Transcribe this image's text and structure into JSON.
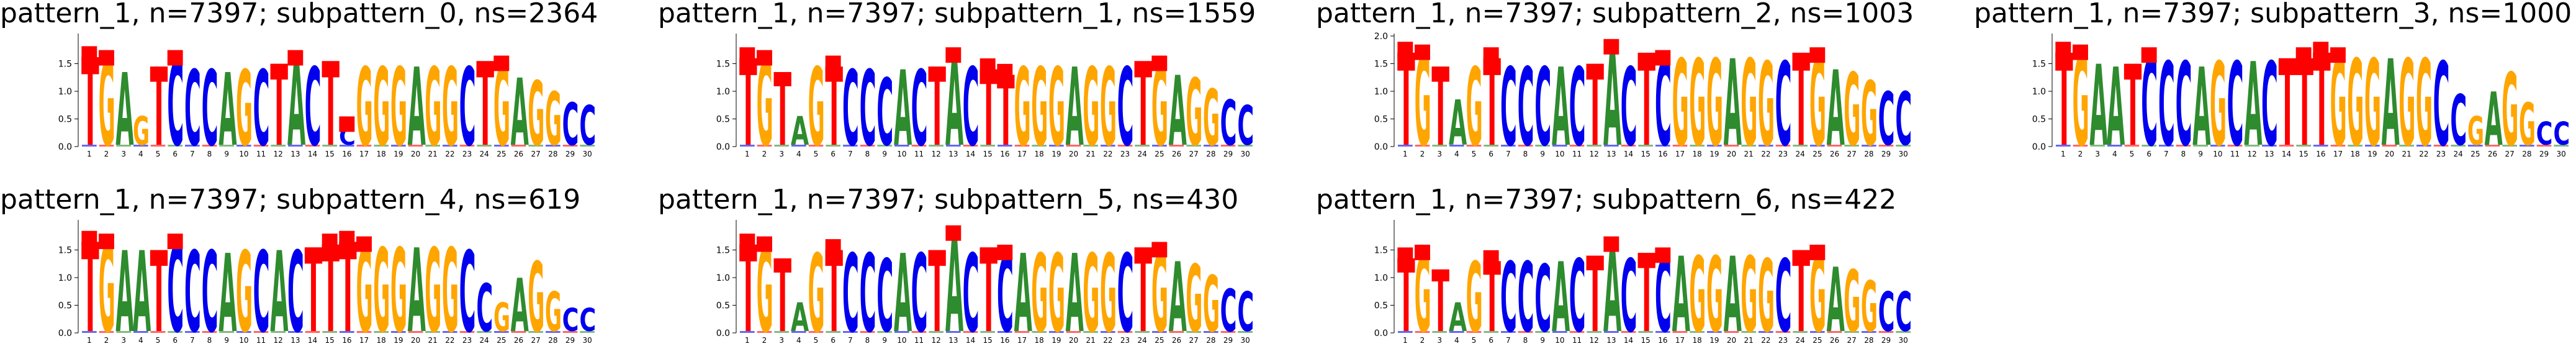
{
  "colors": {
    "A": "#2e8b2e",
    "C": "#0000ee",
    "G": "#ffa500",
    "T": "#ff0000",
    "marker": "#ff0000"
  },
  "chart_data": [
    {
      "type": "sequence-logo",
      "title": "pattern_1, n=7397; subpattern_0, ns=2364",
      "ylim": [
        0,
        2.0
      ],
      "yticks": [
        "0.0",
        "0.5",
        "1.0",
        "1.5"
      ],
      "positions": [
        1,
        2,
        3,
        4,
        5,
        6,
        7,
        8,
        9,
        10,
        11,
        12,
        13,
        14,
        15,
        16,
        17,
        18,
        19,
        20,
        21,
        22,
        23,
        24,
        25,
        26,
        27,
        28,
        29,
        30
      ],
      "consensus": [
        "T",
        "G",
        "A",
        "G",
        "T",
        "C",
        "C",
        "C",
        "A",
        "G",
        "C",
        "T",
        "A",
        "C",
        "T",
        "C",
        "G",
        "G",
        "G",
        "A",
        "G",
        "G",
        "C",
        "T",
        "G",
        "A",
        "G",
        "G",
        "C",
        "C"
      ],
      "heights": [
        1.62,
        1.55,
        1.35,
        0.55,
        1.45,
        1.55,
        1.4,
        1.4,
        1.35,
        1.4,
        1.4,
        1.5,
        1.55,
        1.45,
        1.55,
        0.35,
        1.45,
        1.45,
        1.45,
        1.45,
        1.45,
        1.45,
        1.45,
        1.55,
        1.45,
        1.25,
        1.2,
        1.0,
        0.8,
        0.75
      ],
      "markers": [
        1,
        2,
        6,
        13,
        16,
        25
      ]
    },
    {
      "type": "sequence-logo",
      "title": "pattern_1, n=7397; subpattern_1, ns=1559",
      "ylim": [
        0,
        2.0
      ],
      "yticks": [
        "0.0",
        "0.5",
        "1.0",
        "1.5"
      ],
      "positions": [
        1,
        2,
        3,
        4,
        5,
        6,
        7,
        8,
        9,
        10,
        11,
        12,
        13,
        14,
        15,
        16,
        17,
        18,
        19,
        20,
        21,
        22,
        23,
        24,
        25,
        26,
        27,
        28,
        29,
        30
      ],
      "consensus": [
        "T",
        "G",
        "T",
        "A",
        "G",
        "T",
        "C",
        "C",
        "C",
        "A",
        "C",
        "T",
        "A",
        "C",
        "T",
        "T",
        "G",
        "G",
        "G",
        "A",
        "G",
        "G",
        "C",
        "T",
        "G",
        "A",
        "G",
        "G",
        "C",
        "C"
      ],
      "heights": [
        1.6,
        1.55,
        1.35,
        0.55,
        1.45,
        1.45,
        1.4,
        1.4,
        1.25,
        1.4,
        1.4,
        1.45,
        1.6,
        1.45,
        1.4,
        1.3,
        1.45,
        1.45,
        1.45,
        1.45,
        1.45,
        1.45,
        1.45,
        1.55,
        1.45,
        1.3,
        1.25,
        1.05,
        0.85,
        0.75
      ],
      "markers": [
        1,
        2,
        6,
        13,
        15,
        16,
        25
      ]
    },
    {
      "type": "sequence-logo",
      "title": "pattern_1, n=7397; subpattern_2, ns=1003",
      "ylim": [
        0,
        2.0
      ],
      "yticks": [
        "0.0",
        "0.5",
        "1.0",
        "1.5",
        "2.0"
      ],
      "positions": [
        1,
        2,
        3,
        4,
        5,
        6,
        7,
        8,
        9,
        10,
        11,
        12,
        13,
        14,
        15,
        16,
        17,
        18,
        19,
        20,
        21,
        22,
        23,
        24,
        25,
        26,
        27,
        28,
        29,
        30
      ],
      "consensus": [
        "T",
        "G",
        "T",
        "A",
        "G",
        "T",
        "C",
        "C",
        "C",
        "A",
        "C",
        "T",
        "A",
        "C",
        "T",
        "C",
        "G",
        "G",
        "G",
        "A",
        "G",
        "G",
        "C",
        "T",
        "G",
        "A",
        "G",
        "G",
        "C",
        "C"
      ],
      "heights": [
        1.7,
        1.65,
        1.45,
        0.85,
        1.45,
        1.6,
        1.45,
        1.45,
        1.45,
        1.45,
        1.45,
        1.5,
        1.75,
        1.45,
        1.7,
        1.55,
        1.6,
        1.6,
        1.6,
        1.6,
        1.6,
        1.55,
        1.55,
        1.7,
        1.6,
        1.4,
        1.35,
        1.2,
        1.0,
        1.0
      ],
      "markers": [
        1,
        2,
        6,
        13,
        16,
        25
      ]
    },
    {
      "type": "sequence-logo",
      "title": "pattern_1, n=7397; subpattern_3, ns=1000",
      "ylim": [
        0,
        2.0
      ],
      "yticks": [
        "0.0",
        "0.5",
        "1.0",
        "1.5"
      ],
      "positions": [
        1,
        2,
        3,
        4,
        5,
        6,
        7,
        8,
        9,
        10,
        11,
        12,
        13,
        14,
        15,
        16,
        17,
        18,
        19,
        20,
        21,
        22,
        23,
        24,
        25,
        26,
        27,
        28,
        29,
        30
      ],
      "consensus": [
        "T",
        "G",
        "A",
        "A",
        "T",
        "C",
        "C",
        "C",
        "A",
        "G",
        "C",
        "A",
        "C",
        "T",
        "T",
        "T",
        "G",
        "G",
        "G",
        "A",
        "G",
        "G",
        "C",
        "C",
        "G",
        "A",
        "G",
        "G",
        "C",
        "C"
      ],
      "heights": [
        1.7,
        1.65,
        1.5,
        1.45,
        1.5,
        1.6,
        1.55,
        1.55,
        1.45,
        1.55,
        1.55,
        1.55,
        1.55,
        1.6,
        1.6,
        1.7,
        1.6,
        1.6,
        1.6,
        1.6,
        1.6,
        1.6,
        1.55,
        0.95,
        0.55,
        1.0,
        1.35,
        0.8,
        0.45,
        0.45
      ],
      "markers": [
        1,
        2,
        6,
        15,
        16,
        17
      ]
    },
    {
      "type": "sequence-logo",
      "title": "pattern_1, n=7397; subpattern_4, ns=619",
      "ylim": [
        0,
        2.0
      ],
      "yticks": [
        "0.0",
        "0.5",
        "1.0",
        "1.5"
      ],
      "positions": [
        1,
        2,
        3,
        4,
        5,
        6,
        7,
        8,
        9,
        10,
        11,
        12,
        13,
        14,
        15,
        16,
        17,
        18,
        19,
        20,
        21,
        22,
        23,
        24,
        25,
        26,
        27,
        28,
        29,
        30
      ],
      "consensus": [
        "T",
        "G",
        "A",
        "A",
        "T",
        "C",
        "C",
        "C",
        "A",
        "G",
        "C",
        "A",
        "C",
        "T",
        "T",
        "T",
        "G",
        "G",
        "G",
        "A",
        "G",
        "G",
        "C",
        "C",
        "G",
        "A",
        "G",
        "G",
        "C",
        "C"
      ],
      "heights": [
        1.65,
        1.6,
        1.5,
        1.5,
        1.5,
        1.6,
        1.5,
        1.5,
        1.45,
        1.5,
        1.5,
        1.5,
        1.5,
        1.55,
        1.6,
        1.65,
        1.55,
        1.55,
        1.55,
        1.55,
        1.55,
        1.55,
        1.5,
        0.9,
        0.55,
        1.0,
        1.3,
        0.75,
        0.45,
        0.45
      ],
      "markers": [
        1,
        2,
        6,
        15,
        16,
        17
      ]
    },
    {
      "type": "sequence-logo",
      "title": "pattern_1, n=7397; subpattern_5, ns=430",
      "ylim": [
        0,
        2.0
      ],
      "yticks": [
        "0.0",
        "0.5",
        "1.0",
        "1.5"
      ],
      "positions": [
        1,
        2,
        3,
        4,
        5,
        6,
        7,
        8,
        9,
        10,
        11,
        12,
        13,
        14,
        15,
        16,
        17,
        18,
        19,
        20,
        21,
        22,
        23,
        24,
        25,
        26,
        27,
        28,
        29,
        30
      ],
      "consensus": [
        "T",
        "G",
        "T",
        "A",
        "G",
        "T",
        "C",
        "C",
        "C",
        "A",
        "C",
        "T",
        "A",
        "C",
        "T",
        "C",
        "A",
        "G",
        "G",
        "A",
        "G",
        "G",
        "C",
        "T",
        "G",
        "A",
        "G",
        "G",
        "C",
        "C"
      ],
      "heights": [
        1.6,
        1.55,
        1.35,
        0.55,
        1.45,
        1.5,
        1.45,
        1.45,
        1.35,
        1.45,
        1.45,
        1.5,
        1.75,
        1.45,
        1.55,
        1.4,
        1.45,
        1.45,
        1.45,
        1.45,
        1.45,
        1.45,
        1.45,
        1.55,
        1.45,
        1.3,
        1.25,
        1.05,
        0.8,
        0.75
      ],
      "markers": [
        1,
        2,
        6,
        13,
        16,
        25
      ]
    },
    {
      "type": "sequence-logo",
      "title": "pattern_1, n=7397; subpattern_6, ns=422",
      "ylim": [
        0,
        2.0
      ],
      "yticks": [
        "0.0",
        "0.5",
        "1.0",
        "1.5"
      ],
      "positions": [
        1,
        2,
        3,
        4,
        5,
        6,
        7,
        8,
        9,
        10,
        11,
        12,
        13,
        14,
        15,
        16,
        17,
        18,
        19,
        20,
        21,
        22,
        23,
        24,
        25,
        26,
        27,
        28,
        29,
        30
      ],
      "consensus": [
        "T",
        "G",
        "T",
        "A",
        "G",
        "T",
        "C",
        "C",
        "C",
        "A",
        "C",
        "T",
        "A",
        "C",
        "T",
        "C",
        "A",
        "G",
        "G",
        "A",
        "G",
        "G",
        "C",
        "T",
        "G",
        "A",
        "G",
        "G",
        "C",
        "C"
      ],
      "heights": [
        1.35,
        1.4,
        1.15,
        0.55,
        1.3,
        1.3,
        1.3,
        1.3,
        1.25,
        1.3,
        1.35,
        1.4,
        1.55,
        1.35,
        1.45,
        1.35,
        1.4,
        1.4,
        1.4,
        1.4,
        1.4,
        1.35,
        1.35,
        1.5,
        1.4,
        1.2,
        1.15,
        0.95,
        0.75,
        0.75
      ],
      "markers": [
        1,
        2,
        6,
        13,
        16,
        25
      ]
    }
  ]
}
